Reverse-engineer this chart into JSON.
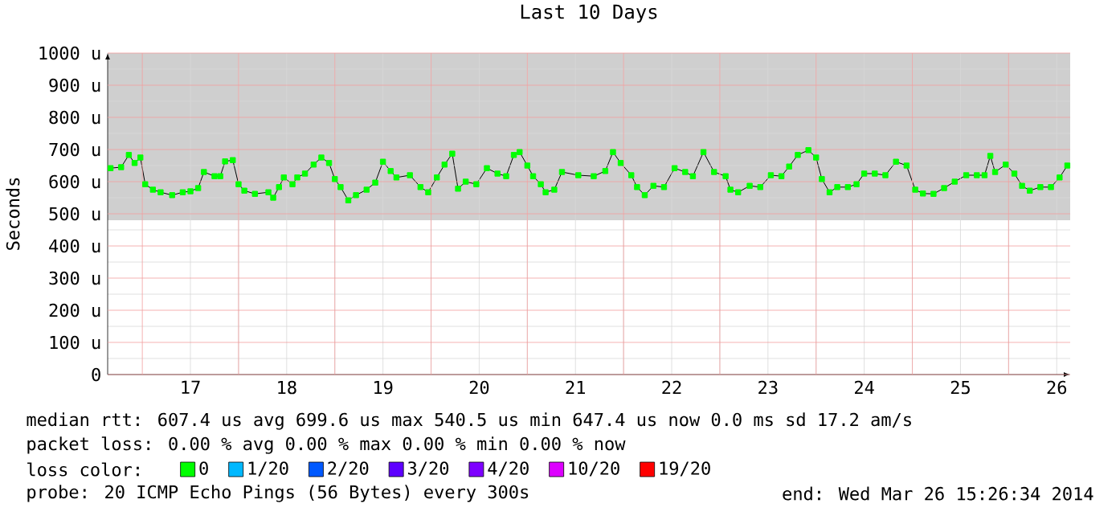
{
  "chart_data": {
    "type": "line",
    "title": "Last 10 Days",
    "ylabel": "Seconds",
    "xlim": [
      16.64,
      26.64
    ],
    "ylim": [
      0,
      1000
    ],
    "xticks": [
      {
        "value": 17,
        "label": null
      },
      {
        "value": 17.5,
        "label": "17"
      },
      {
        "value": 18,
        "label": null
      },
      {
        "value": 18.5,
        "label": "18"
      },
      {
        "value": 19,
        "label": null
      },
      {
        "value": 19.5,
        "label": "19"
      },
      {
        "value": 20,
        "label": null
      },
      {
        "value": 20.5,
        "label": "20"
      },
      {
        "value": 21,
        "label": null
      },
      {
        "value": 21.5,
        "label": "21"
      },
      {
        "value": 22,
        "label": null
      },
      {
        "value": 22.5,
        "label": "22"
      },
      {
        "value": 23,
        "label": null
      },
      {
        "value": 23.5,
        "label": "23"
      },
      {
        "value": 24,
        "label": null
      },
      {
        "value": 24.5,
        "label": "24"
      },
      {
        "value": 25,
        "label": null
      },
      {
        "value": 25.5,
        "label": "25"
      },
      {
        "value": 26,
        "label": null
      },
      {
        "value": 26.5,
        "label": "26"
      }
    ],
    "yticks": [
      0,
      {
        "value": 100,
        "label": "100 u"
      },
      {
        "value": 200,
        "label": "200 u"
      },
      {
        "value": 300,
        "label": "300 u"
      },
      {
        "value": 400,
        "label": "400 u"
      },
      {
        "value": 500,
        "label": "500 u"
      },
      {
        "value": 600,
        "label": "600 u"
      },
      {
        "value": 700,
        "label": "700 u"
      },
      {
        "value": 800,
        "label": "800 u"
      },
      {
        "value": 900,
        "label": "900 u"
      },
      {
        "value": 1000,
        "label": "1000 u"
      }
    ],
    "grid": true,
    "legend": "bottom",
    "legend_title": "loss color:",
    "marker": "square",
    "bands": [
      {
        "axis": "y",
        "from": 480,
        "to": 1000,
        "color": "#cfcfcf"
      }
    ],
    "series": [
      {
        "name": "0",
        "color": "#00ff00",
        "x": [
          16.67,
          16.78,
          16.86,
          16.92,
          16.98,
          17.03,
          17.11,
          17.19,
          17.31,
          17.42,
          17.5,
          17.58,
          17.64,
          17.75,
          17.81,
          17.86,
          17.94,
          18.0,
          18.06,
          18.17,
          18.31,
          18.36,
          18.42,
          18.47,
          18.56,
          18.61,
          18.69,
          18.78,
          18.86,
          18.94,
          19.0,
          19.06,
          19.14,
          19.22,
          19.33,
          19.42,
          19.5,
          19.58,
          19.64,
          19.78,
          19.89,
          19.97,
          20.06,
          20.14,
          20.22,
          20.28,
          20.36,
          20.47,
          20.58,
          20.69,
          20.78,
          20.86,
          20.92,
          21.0,
          21.06,
          21.14,
          21.19,
          21.28,
          21.36,
          21.53,
          21.69,
          21.81,
          21.89,
          21.97,
          22.08,
          22.14,
          22.22,
          22.31,
          22.42,
          22.53,
          22.64,
          22.72,
          22.83,
          22.94,
          23.06,
          23.11,
          23.19,
          23.31,
          23.42,
          23.53,
          23.64,
          23.72,
          23.81,
          23.92,
          24.0,
          24.06,
          24.14,
          24.22,
          24.33,
          24.42,
          24.5,
          24.61,
          24.72,
          24.83,
          24.94,
          25.03,
          25.11,
          25.22,
          25.33,
          25.44,
          25.56,
          25.67,
          25.75,
          25.81,
          25.86,
          25.97,
          26.06,
          26.14,
          26.22,
          26.33,
          26.44,
          26.53,
          26.61
        ],
        "values": [
          642,
          645,
          683,
          658,
          675,
          592,
          575,
          567,
          558,
          567,
          570,
          580,
          630,
          617,
          617,
          663,
          667,
          592,
          572,
          562,
          567,
          550,
          583,
          613,
          592,
          613,
          625,
          653,
          675,
          658,
          608,
          583,
          542,
          558,
          575,
          597,
          662,
          633,
          613,
          620,
          583,
          567,
          613,
          653,
          687,
          578,
          600,
          592,
          642,
          625,
          617,
          683,
          692,
          650,
          617,
          592,
          567,
          575,
          630,
          620,
          617,
          633,
          692,
          658,
          620,
          583,
          558,
          587,
          583,
          642,
          630,
          617,
          692,
          630,
          617,
          575,
          567,
          587,
          583,
          620,
          617,
          647,
          683,
          698,
          675,
          608,
          567,
          583,
          583,
          592,
          625,
          625,
          620,
          662,
          650,
          575,
          563,
          562,
          580,
          600,
          620,
          620,
          620,
          680,
          630,
          653,
          625,
          587,
          572,
          583,
          583,
          613,
          650
        ]
      },
      {
        "name": "1/20",
        "color": "#00b8ff"
      },
      {
        "name": "2/20",
        "color": "#0059ff"
      },
      {
        "name": "3/20",
        "color": "#5e00ff"
      },
      {
        "name": "4/20",
        "color": "#7e00ff"
      },
      {
        "name": "10/20",
        "color": "#dd00ff"
      },
      {
        "name": "19/20",
        "color": "#ff0000"
      }
    ],
    "annotations": [
      "median rtt: 607.4 us avg 699.6 us max 540.5 us min 647.4 us now 0.0 ms sd 17.2 am/s",
      "packet loss: 0.00 % avg 0.00 % max 0.00 % min 0.00 % now",
      "probe: 20 ICMP Echo Pings (56 Bytes) every 300s",
      "end: Wed Mar 26 15:26:34 2014"
    ]
  }
}
